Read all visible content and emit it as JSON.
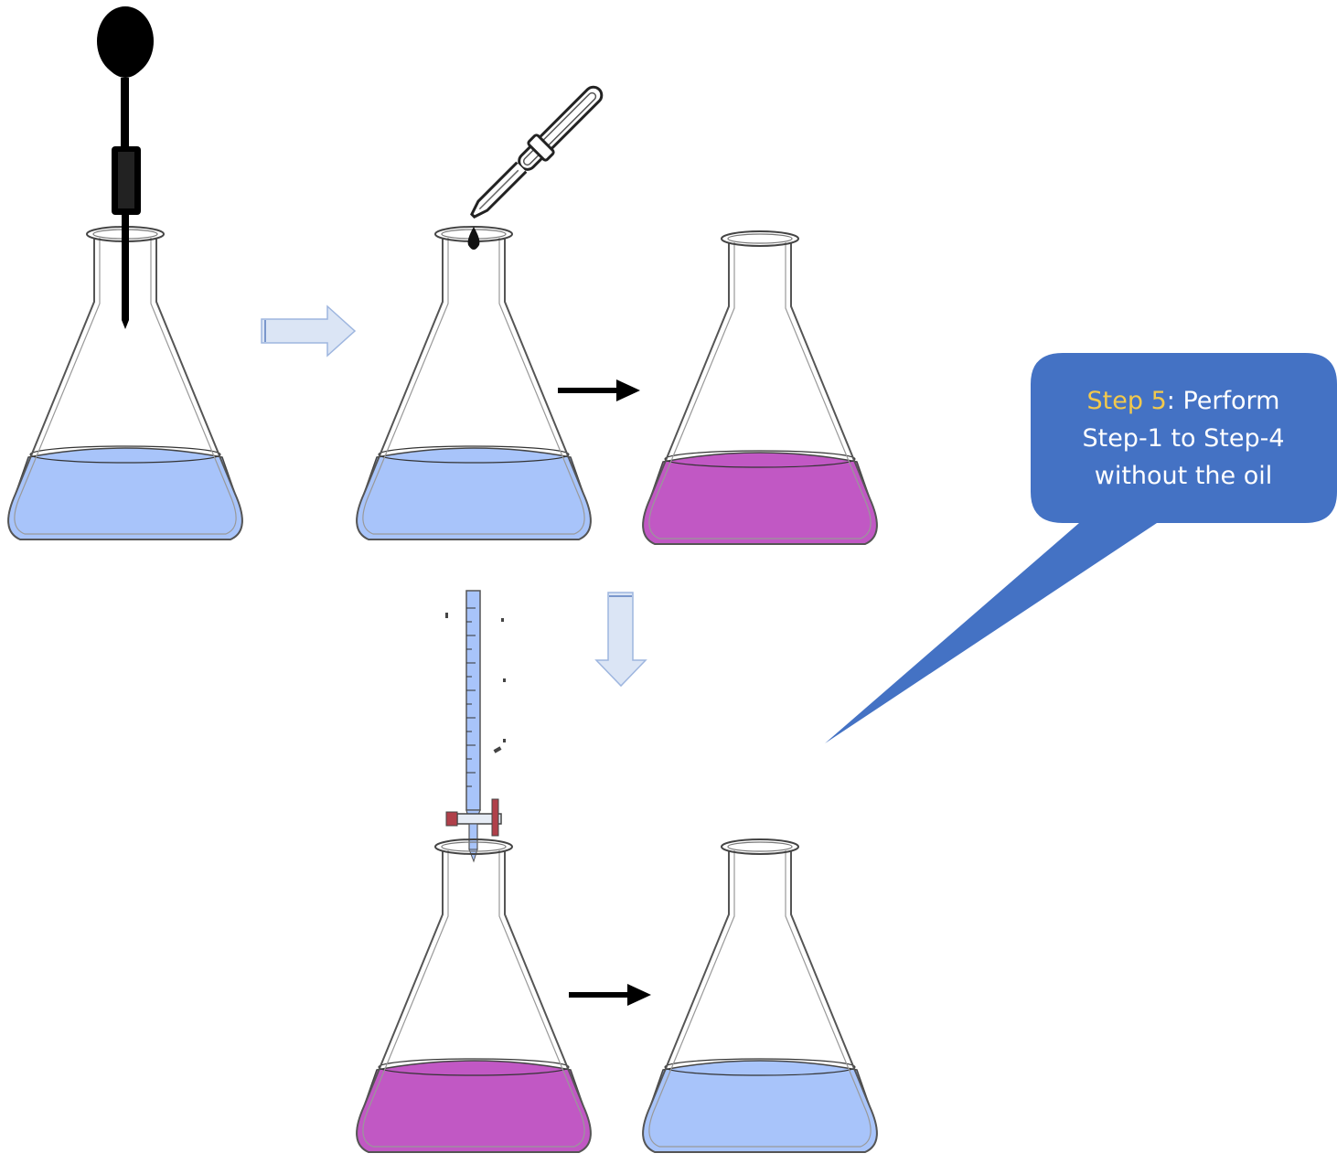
{
  "callout": {
    "highlight": "Step 5",
    "line1_rest": ": Perform",
    "line2": "Step-1 to Step-4",
    "line3": "without the oil"
  },
  "colors": {
    "blue_liquid": "#a8c4fa",
    "magenta_liquid": "#c158c4",
    "callout_fill": "#4472c4",
    "callout_highlight": "#f2c94c",
    "process_arrow_fill": "#dbe5f5",
    "process_arrow_stroke": "#9eb6df"
  },
  "flasks": [
    {
      "id": "flask-1",
      "liquid": "blue"
    },
    {
      "id": "flask-2",
      "liquid": "blue"
    },
    {
      "id": "flask-3",
      "liquid": "magenta"
    },
    {
      "id": "flask-4",
      "liquid": "magenta"
    },
    {
      "id": "flask-5",
      "liquid": "blue"
    }
  ]
}
